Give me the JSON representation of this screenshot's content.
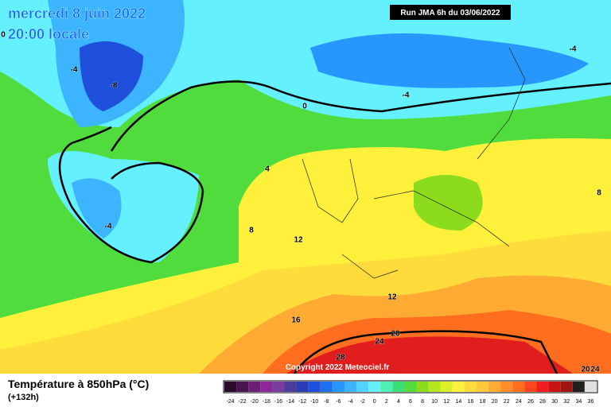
{
  "header": {
    "date": "mercredi 8 juin 2022",
    "time": "20:00 locale",
    "run": "Run JMA 6h du 03/06/2022"
  },
  "copyright": "Copyright 2022 Meteociel.fr",
  "footer": {
    "title": "Température à 850hPa (°C)",
    "lead": "(+132h)"
  },
  "contour_labels": [
    0,
    -4,
    -8,
    -4,
    -4,
    0,
    4,
    -4,
    8,
    12,
    8,
    12,
    16,
    20,
    24,
    28,
    20,
    24
  ],
  "legend": {
    "labels": [
      -24,
      -22,
      -20,
      -18,
      -16,
      -14,
      -12,
      -10,
      -8,
      -6,
      -4,
      -2,
      0,
      2,
      4,
      6,
      8,
      10,
      12,
      14,
      16,
      18,
      20,
      22,
      24,
      26,
      28,
      30,
      32,
      34,
      36
    ],
    "colors": [
      "#2a0a2a",
      "#4a1450",
      "#6a1e74",
      "#8a2898",
      "#7a3c9c",
      "#4a3c9c",
      "#2c3cb4",
      "#1e50dc",
      "#1e6ef0",
      "#2896ff",
      "#3cb4ff",
      "#50d2ff",
      "#64f0ff",
      "#50f0b4",
      "#3cdc78",
      "#50dc3c",
      "#8cdc1e",
      "#b4e61e",
      "#dcf028",
      "#fff03c",
      "#ffdc3c",
      "#ffc83c",
      "#ffaa32",
      "#ff8c28",
      "#ff6e1e",
      "#ff461e",
      "#f01e1e",
      "#c81414",
      "#a01414",
      "#202020",
      "#e0e0e0"
    ]
  }
}
